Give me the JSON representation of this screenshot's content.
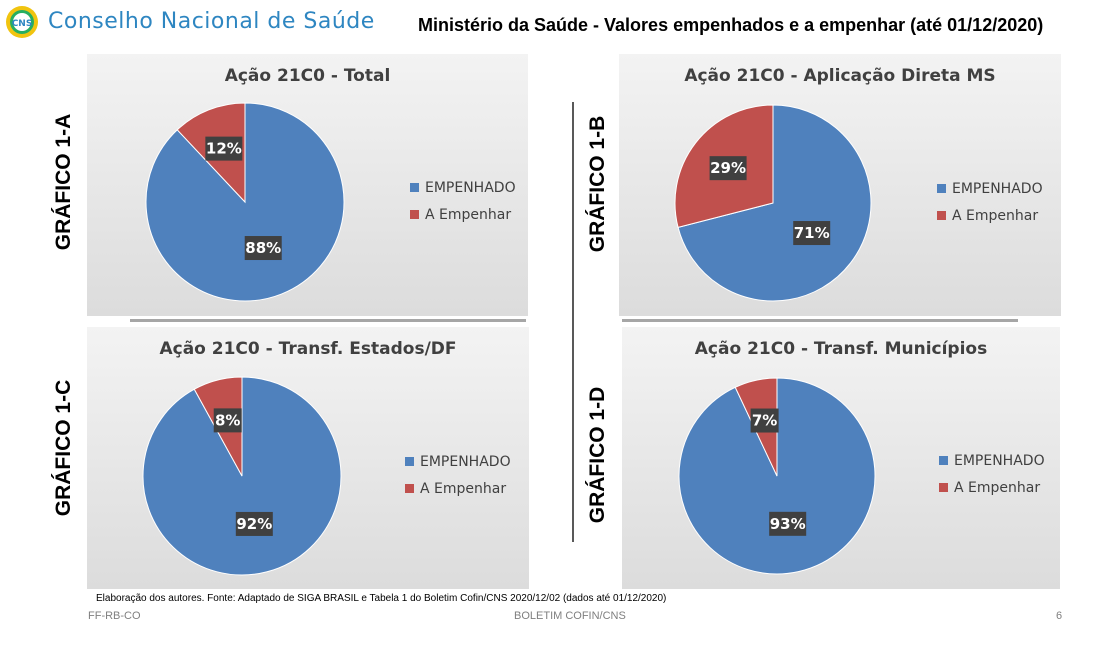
{
  "header": {
    "logo_text": "CNS",
    "org_name": "Conselho Nacional de Saúde",
    "title": "Ministério da Saúde - Valores empenhados e a empenhar (até 01/12/2020)"
  },
  "side_labels": [
    "GRÁFICO 1-A",
    "GRÁFICO 1-B",
    "GRÁFICO 1-C",
    "GRÁFICO 1-D"
  ],
  "colors": {
    "empenhado": "#4f81bd",
    "a_empenhar": "#c0504d",
    "label_box": "#404040"
  },
  "chart_data": [
    {
      "type": "pie",
      "title": "Ação 21C0 - Total",
      "categories": [
        "EMPENHADO",
        "A Empenhar"
      ],
      "values": [
        88,
        12
      ],
      "data_labels": [
        "88%",
        "12%"
      ],
      "legend_position": "right"
    },
    {
      "type": "pie",
      "title": "Ação 21C0 - Aplicação Direta MS",
      "categories": [
        "EMPENHADO",
        "A Empenhar"
      ],
      "values": [
        71,
        29
      ],
      "data_labels": [
        "71%",
        "29%"
      ],
      "legend_position": "right"
    },
    {
      "type": "pie",
      "title": "Ação 21C0 - Transf. Estados/DF",
      "categories": [
        "EMPENHADO",
        "A Empenhar"
      ],
      "values": [
        92,
        8
      ],
      "data_labels": [
        "92%",
        "8%"
      ],
      "legend_position": "right"
    },
    {
      "type": "pie",
      "title": "Ação 21C0 - Transf. Municípios",
      "categories": [
        "EMPENHADO",
        "A Empenhar"
      ],
      "values": [
        93,
        7
      ],
      "data_labels": [
        "93%",
        "7%"
      ],
      "legend_position": "right"
    }
  ],
  "source_note": "Elaboração dos autores. Fonte: Adaptado de SIGA BRASIL e Tabela 1 do Boletim Cofin/CNS 2020/12/02 (dados até 01/12/2020)",
  "footer": {
    "left": "FF-RB-CO",
    "center": "BOLETIM COFIN/CNS",
    "page": "6"
  }
}
